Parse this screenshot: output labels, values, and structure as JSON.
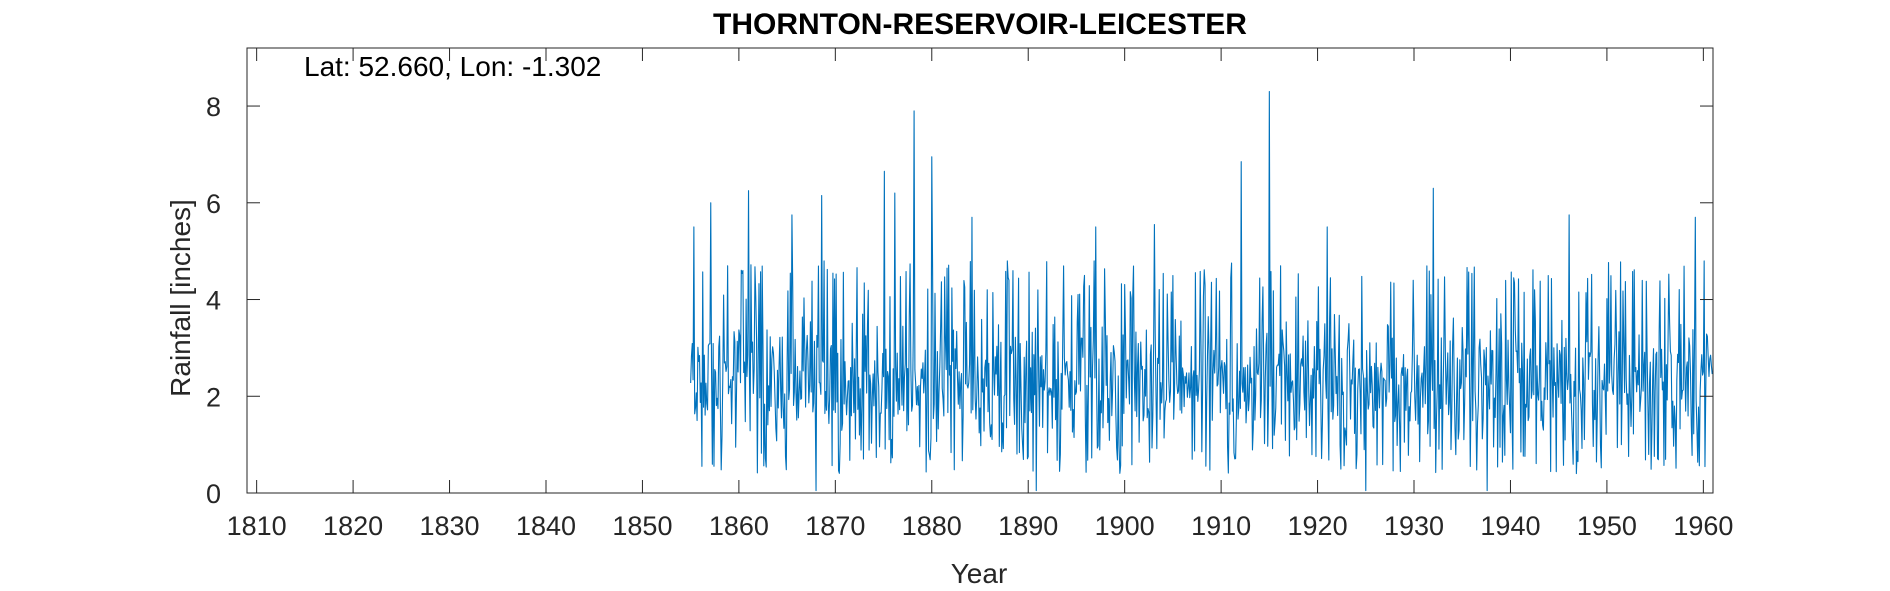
{
  "chart_data": {
    "type": "line",
    "title": "THORNTON-RESERVOIR-LEICESTER",
    "annotation": "Lat: 52.660, Lon: -1.302",
    "xlabel": "Year",
    "ylabel": "Rainfall [inches]",
    "xlim": [
      1809,
      1961
    ],
    "ylim": [
      0,
      9.2
    ],
    "x_ticks": [
      1810,
      1820,
      1830,
      1840,
      1850,
      1860,
      1870,
      1880,
      1890,
      1900,
      1910,
      1920,
      1930,
      1940,
      1950,
      1960
    ],
    "x_tick_labels": [
      "1810",
      "1820",
      "1830",
      "1840",
      "1850",
      "1860",
      "1870",
      "1880",
      "1890",
      "1900",
      "1910",
      "1920",
      "1930",
      "1940",
      "1950",
      "1960"
    ],
    "y_ticks": [
      0,
      2,
      4,
      6,
      8
    ],
    "y_tick_labels": [
      "0",
      "2",
      "4",
      "6",
      "8"
    ],
    "grid": false,
    "series": [
      {
        "color": "#0072BD",
        "x_start": 1855.0,
        "x_end": 1960.9,
        "samples_per_year": 12,
        "peaks": [
          {
            "x": 1855.3,
            "y": 5.5
          },
          {
            "x": 1857.1,
            "y": 6.0
          },
          {
            "x": 1861.0,
            "y": 6.25
          },
          {
            "x": 1865.5,
            "y": 5.75
          },
          {
            "x": 1868.6,
            "y": 6.15
          },
          {
            "x": 1875.1,
            "y": 6.65
          },
          {
            "x": 1876.2,
            "y": 6.2
          },
          {
            "x": 1878.2,
            "y": 7.9
          },
          {
            "x": 1880.0,
            "y": 6.95
          },
          {
            "x": 1884.2,
            "y": 5.7
          },
          {
            "x": 1897.0,
            "y": 5.5
          },
          {
            "x": 1903.1,
            "y": 5.55
          },
          {
            "x": 1912.1,
            "y": 6.85
          },
          {
            "x": 1915.0,
            "y": 8.3
          },
          {
            "x": 1921.0,
            "y": 5.5
          },
          {
            "x": 1932.0,
            "y": 6.3
          },
          {
            "x": 1946.1,
            "y": 5.75
          },
          {
            "x": 1959.2,
            "y": 5.7
          }
        ],
        "troughs": [
          {
            "x": 1868.0,
            "y": 0.05
          },
          {
            "x": 1890.8,
            "y": 0.05
          },
          {
            "x": 1925.0,
            "y": 0.05
          },
          {
            "x": 1937.6,
            "y": 0.05
          }
        ],
        "typical_range": [
          0.4,
          4.8
        ],
        "typical_mean": 2.3
      }
    ]
  }
}
